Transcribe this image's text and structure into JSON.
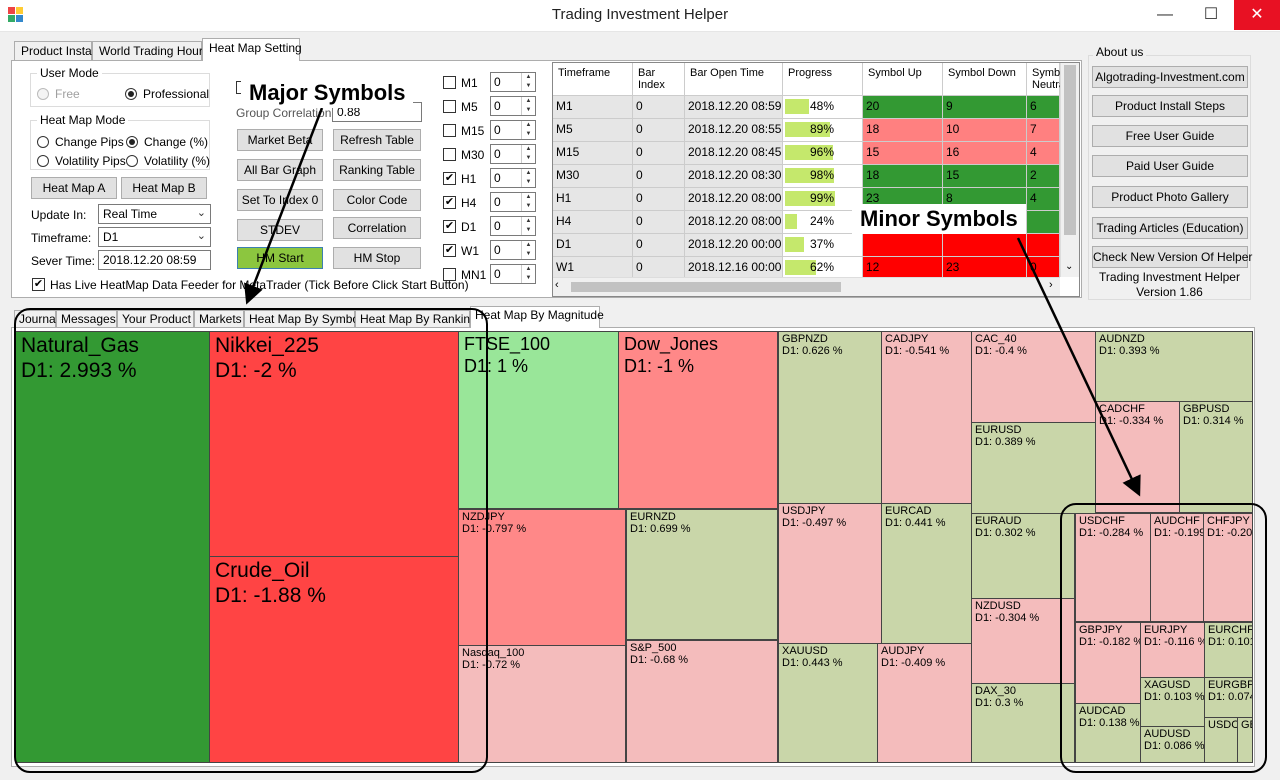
{
  "window": {
    "title": "Trading Investment Helper",
    "minimize": "—",
    "maximize": "☐",
    "close": "✕"
  },
  "top_tabs": [
    "Product Install",
    "World Trading Hours",
    "Heat Map Setting"
  ],
  "settings": {
    "user_mode_title": "User Mode",
    "mode_free": "Free",
    "mode_professional": "Professional",
    "hm_mode_title": "Heat Map Mode",
    "change_pips": "Change Pips",
    "change_pct": "Change (%)",
    "volatility_pips": "Volatility Pips",
    "volatility_pct": "Volatility (%)",
    "heat_map_a": "Heat Map A",
    "heat_map_b": "Heat Map B",
    "update_in_label": "Update In:",
    "update_in_value": "Real Time",
    "timeframe_label": "Timeframe:",
    "timeframe_value": "D1",
    "server_time_label": "Sever Time:",
    "server_time_value": "2018.12.20 08:59",
    "live_feeder_label": "Has Live HeatMap Data Feeder for MetaTrader (Tick Before Click Start Button)",
    "group_correlation_label": "Group Correlation",
    "group_correlation_value": "0.88"
  },
  "mid_buttons": {
    "market_beta": "Market Beta",
    "refresh_table": "Refresh Table",
    "all_bar_graph": "All Bar Graph",
    "ranking_table": "Ranking Table",
    "set_to_index_0": "Set To Index 0",
    "color_code": "Color Code",
    "stdev": "STDEV",
    "correlation": "Correlation",
    "hm_start": "HM Start",
    "hm_stop": "HM Stop"
  },
  "timeframes": [
    {
      "label": "M1",
      "checked": false,
      "value": "0"
    },
    {
      "label": "M5",
      "checked": false,
      "value": "0"
    },
    {
      "label": "M15",
      "checked": false,
      "value": "0"
    },
    {
      "label": "M30",
      "checked": false,
      "value": "0"
    },
    {
      "label": "H1",
      "checked": true,
      "value": "0"
    },
    {
      "label": "H4",
      "checked": true,
      "value": "0"
    },
    {
      "label": "D1",
      "checked": true,
      "value": "0"
    },
    {
      "label": "W1",
      "checked": true,
      "value": "0"
    },
    {
      "label": "MN1",
      "checked": false,
      "value": "0"
    }
  ],
  "check_mark": "✔",
  "table": {
    "headers": [
      "Timeframe",
      "Bar Index",
      "Bar Open Time",
      "Progress",
      "Symbol Up",
      "Symbol Down",
      "Symbol Neutral"
    ],
    "rows": [
      {
        "tf": "M1",
        "idx": "0",
        "time": "2018.12.20 08:59",
        "progress": 48,
        "progress_text": "48%",
        "up": "20",
        "down": "9",
        "neutral": "6",
        "color": "#339933"
      },
      {
        "tf": "M5",
        "idx": "0",
        "time": "2018.12.20 08:55",
        "progress": 89,
        "progress_text": "89%",
        "up": "18",
        "down": "10",
        "neutral": "7",
        "color": "#ff8080"
      },
      {
        "tf": "M15",
        "idx": "0",
        "time": "2018.12.20 08:45",
        "progress": 96,
        "progress_text": "96%",
        "up": "15",
        "down": "16",
        "neutral": "4",
        "color": "#ff8080"
      },
      {
        "tf": "M30",
        "idx": "0",
        "time": "2018.12.20 08:30",
        "progress": 98,
        "progress_text": "98%",
        "up": "18",
        "down": "15",
        "neutral": "2",
        "color": "#339933"
      },
      {
        "tf": "H1",
        "idx": "0",
        "time": "2018.12.20 08:00",
        "progress": 99,
        "progress_text": "99%",
        "up": "23",
        "down": "8",
        "neutral": "4",
        "color": "#339933"
      },
      {
        "tf": "H4",
        "idx": "0",
        "time": "2018.12.20 08:00",
        "progress": 24,
        "progress_text": "24%",
        "up": "",
        "down": "",
        "neutral": "",
        "color": "#339933"
      },
      {
        "tf": "D1",
        "idx": "0",
        "time": "2018.12.20 00:00",
        "progress": 37,
        "progress_text": "37%",
        "up": "",
        "down": "",
        "neutral": "",
        "color": "#ff0000"
      },
      {
        "tf": "W1",
        "idx": "0",
        "time": "2018.12.16 00:00",
        "progress": 62,
        "progress_text": "62%",
        "up": "12",
        "down": "23",
        "neutral": "0",
        "color": "#ff0000"
      }
    ]
  },
  "about": {
    "title": "About us",
    "buttons": [
      "Algotrading-Investment.com",
      "Product Install Steps",
      "Free User Guide",
      "Paid User Guide",
      "Product Photo Gallery",
      "Trading Articles (Education)",
      "Check New Version Of Helper"
    ],
    "app_name": "Trading Investment Helper",
    "version": "Version 1.86"
  },
  "bottom_tabs": [
    "Journal",
    "Messages",
    "Your Product",
    "Markets",
    "Heat Map By Symbol",
    "Heat Map By Ranking",
    "Heat Map By Magnitude"
  ],
  "heatmap": [
    {
      "name": "Natural_Gas",
      "value": "D1: 2.993 %",
      "big": true,
      "color": "#339933"
    },
    {
      "name": "Nikkei_225",
      "value": "D1: -2 %",
      "big": true,
      "color": "#ff4444"
    },
    {
      "name": "Crude_Oil",
      "value": "D1: -1.88 %",
      "big": true,
      "color": "#ff4444"
    },
    {
      "name": "FTSE_100",
      "value": "D1: 1 %",
      "big": true,
      "color": "#99e699"
    },
    {
      "name": "Dow_Jones",
      "value": "D1: -1 %",
      "big": true,
      "color": "#ff8888"
    },
    {
      "name": "NZDJPY",
      "value": "D1: -0.797 %",
      "color": "#ff8888"
    },
    {
      "name": "Nasdaq_100",
      "value": "D1: -0.72 %",
      "color": "#f4bcbc"
    },
    {
      "name": "EURNZD",
      "value": "D1: 0.699 %",
      "color": "#c9d6a9"
    },
    {
      "name": "S&P_500",
      "value": "D1: -0.68 %",
      "color": "#f4bcbc"
    },
    {
      "name": "GBPNZD",
      "value": "D1: 0.626 %",
      "color": "#c9d6a9"
    },
    {
      "name": "CADJPY",
      "value": "D1: -0.541 %",
      "color": "#f4bcbc"
    },
    {
      "name": "USDJPY",
      "value": "D1: -0.497 %",
      "color": "#f4bcbc"
    },
    {
      "name": "EURCAD",
      "value": "D1: 0.441 %",
      "color": "#c9d6a9"
    },
    {
      "name": "XAUUSD",
      "value": "D1: 0.443 %",
      "color": "#c9d6a9"
    },
    {
      "name": "AUDJPY",
      "value": "D1: -0.409 %",
      "color": "#f4bcbc"
    },
    {
      "name": "CAC_40",
      "value": "D1: -0.4 %",
      "color": "#f4bcbc"
    },
    {
      "name": "EURUSD",
      "value": "D1: 0.389 %",
      "color": "#c9d6a9"
    },
    {
      "name": "EURAUD",
      "value": "D1: 0.302 %",
      "color": "#c9d6a9"
    },
    {
      "name": "NZDUSD",
      "value": "D1: -0.304 %",
      "color": "#f4bcbc"
    },
    {
      "name": "DAX_30",
      "value": "D1: 0.3 %",
      "color": "#c9d6a9"
    },
    {
      "name": "AUDNZD",
      "value": "D1: 0.393 %",
      "color": "#c9d6a9"
    },
    {
      "name": "CADCHF",
      "value": "D1: -0.334 %",
      "color": "#f4bcbc"
    },
    {
      "name": "GBPUSD",
      "value": "D1: 0.314 %",
      "color": "#c9d6a9"
    },
    {
      "name": "USDCHF",
      "value": "D1: -0.284 %",
      "color": "#f4bcbc"
    },
    {
      "name": "AUDCHF",
      "value": "D1: -0.199",
      "color": "#f4bcbc"
    },
    {
      "name": "CHFJPY",
      "value": "D1: -0.20",
      "color": "#f4bcbc"
    },
    {
      "name": "GBPJPY",
      "value": "D1: -0.182 %",
      "color": "#f4bcbc"
    },
    {
      "name": "EURJPY",
      "value": "D1: -0.116 %",
      "color": "#f4bcbc"
    },
    {
      "name": "EURCHF",
      "value": "D1: 0.101",
      "color": "#c9d6a9"
    },
    {
      "name": "XAGUSD",
      "value": "D1: 0.103 %",
      "color": "#c9d6a9"
    },
    {
      "name": "EURGBP",
      "value": "D1: 0.074",
      "color": "#c9d6a9"
    },
    {
      "name": "AUDCAD",
      "value": "D1: 0.138 %",
      "color": "#c9d6a9"
    },
    {
      "name": "AUDUSD",
      "value": "D1: 0.086 %",
      "color": "#c9d6a9"
    },
    {
      "name": "USDC",
      "value": "",
      "color": "#c9d6a9"
    },
    {
      "name": "GB",
      "value": "",
      "color": "#c9d6a9"
    }
  ],
  "annotations": {
    "major": "Major Symbols",
    "minor": "Minor Symbols"
  }
}
